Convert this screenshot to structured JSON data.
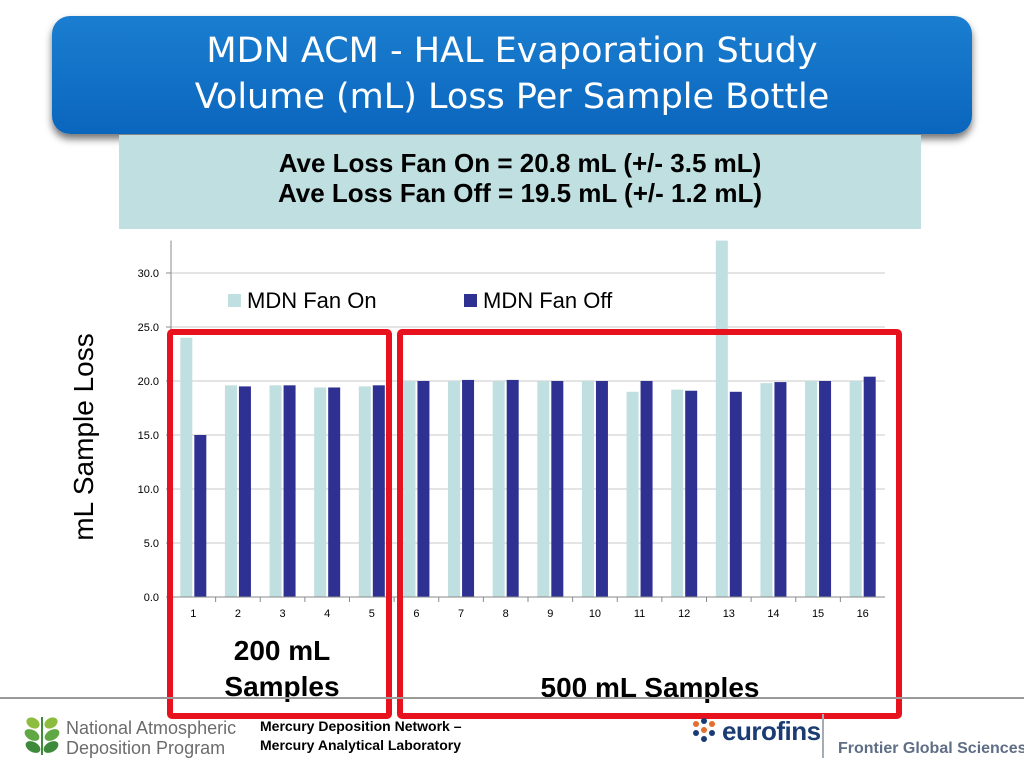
{
  "title": {
    "line1": "MDN ACM - HAL Evaporation Study",
    "line2": "Volume (mL) Loss Per Sample Bottle"
  },
  "summary": {
    "line1": "Ave Loss Fan On = 20.8 mL (+/- 3.5 mL)",
    "line2": "Ave Loss Fan Off = 19.5 mL (+/- 1.2 mL)"
  },
  "chart_data": {
    "type": "bar",
    "ylabel": "mL Sample Loss",
    "xlabel": "",
    "categories": [
      "1",
      "2",
      "3",
      "4",
      "5",
      "6",
      "7",
      "8",
      "9",
      "10",
      "11",
      "12",
      "13",
      "14",
      "15",
      "16"
    ],
    "series": [
      {
        "name": "MDN Fan On",
        "color": "#bfdfe0",
        "values": [
          24.0,
          19.6,
          19.6,
          19.4,
          19.5,
          20.0,
          20.0,
          20.0,
          20.0,
          20.0,
          19.0,
          19.2,
          33.2,
          19.8,
          20.0,
          20.0
        ]
      },
      {
        "name": "MDN Fan Off",
        "color": "#2e3192",
        "values": [
          15.0,
          19.5,
          19.6,
          19.4,
          19.6,
          20.0,
          20.1,
          20.1,
          20.0,
          20.0,
          20.0,
          19.1,
          19.0,
          19.9,
          20.0,
          20.4
        ]
      }
    ],
    "yticks": [
      "0.0",
      "5.0",
      "10.0",
      "15.0",
      "20.0",
      "25.0",
      "30.0"
    ],
    "ylim": [
      0,
      33
    ],
    "grid": true,
    "legend": "top-left"
  },
  "groups": {
    "small": {
      "line1": "200 mL",
      "line2": "Samples"
    },
    "large": {
      "label": "500 mL Samples"
    }
  },
  "footer": {
    "nadp_line1": "National Atmospheric",
    "nadp_line2": "Deposition Program",
    "mdn_line1": "Mercury Deposition Network –",
    "mdn_line2": "Mercury Analytical Laboratory",
    "eurofins": "eurofins",
    "frontier": "Frontier Global Sciences"
  },
  "colors": {
    "title_bg": "#0a66bd",
    "summary_bg": "#bfdfe0",
    "highlight_box": "#e8121e",
    "fan_on": "#bfdfe0",
    "fan_off": "#2e3192"
  }
}
